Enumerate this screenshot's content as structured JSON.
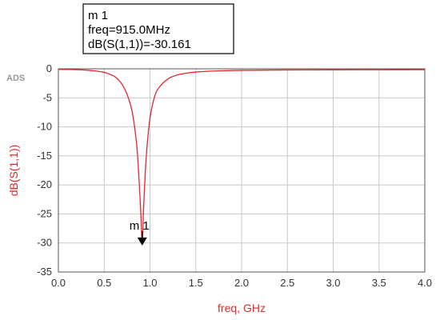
{
  "chart_data": {
    "type": "line",
    "title": "",
    "xlabel": "freq, GHz",
    "ylabel": "dB(S(1,1))",
    "xlim": [
      0.0,
      4.0
    ],
    "ylim": [
      -35,
      0
    ],
    "x_ticks": [
      0.0,
      0.5,
      1.0,
      1.5,
      2.0,
      2.5,
      3.0,
      3.5,
      4.0
    ],
    "x_tick_labels": [
      "0.0",
      "0.5",
      "1.0",
      "1.5",
      "2.0",
      "2.5",
      "3.0",
      "3.5",
      "4.0"
    ],
    "y_ticks": [
      0,
      -5,
      -10,
      -15,
      -20,
      -25,
      -30,
      -35
    ],
    "y_tick_labels": [
      "0",
      "-5",
      "-10",
      "-15",
      "-20",
      "-25",
      "-30",
      "-35"
    ],
    "grid": true,
    "series": [
      {
        "color": "#e8262b",
        "x": [
          0.0,
          0.1,
          0.2,
          0.3,
          0.4,
          0.5,
          0.6,
          0.65,
          0.7,
          0.75,
          0.8,
          0.83,
          0.86,
          0.88,
          0.9,
          0.915,
          0.93,
          0.95,
          0.97,
          1.0,
          1.05,
          1.1,
          1.2,
          1.3,
          1.4,
          1.5,
          1.7,
          2.0,
          2.5,
          3.0,
          3.5,
          4.0
        ],
        "y": [
          -0.1,
          -0.12,
          -0.16,
          -0.23,
          -0.36,
          -0.62,
          -1.2,
          -1.8,
          -2.8,
          -4.4,
          -7.0,
          -9.8,
          -14.0,
          -19.0,
          -25.0,
          -30.161,
          -24.0,
          -17.5,
          -13.0,
          -8.5,
          -4.8,
          -3.2,
          -1.7,
          -1.05,
          -0.75,
          -0.56,
          -0.38,
          -0.27,
          -0.2,
          -0.18,
          -0.17,
          -0.16
        ]
      }
    ],
    "marker": {
      "name": "m1",
      "label": "m 1",
      "x": 0.915,
      "y": -30.161,
      "readout_lines": [
        "m 1",
        "freq=915.0MHz",
        "dB(S(1,1))=-30.161"
      ]
    },
    "watermark": "ADS"
  },
  "colors": {
    "trace": "#e8262b",
    "ylabel": "#e8262b",
    "xlabel": "#e8262b",
    "grid": "#c8c8c8",
    "frame": "#555555",
    "tick_text": "#333333",
    "watermark": "#9a9a9a"
  }
}
